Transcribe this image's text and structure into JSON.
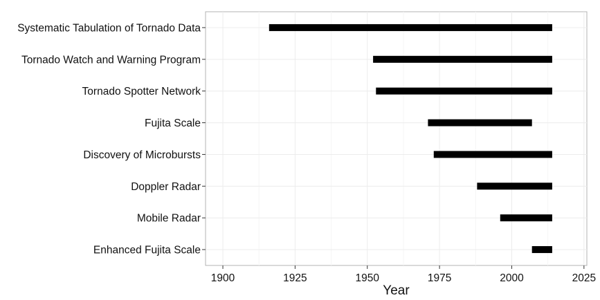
{
  "chart_data": {
    "type": "timeline",
    "title": "",
    "xlabel": "Year",
    "ylabel": "",
    "xlim": [
      1894,
      2026
    ],
    "xticks": [
      1900,
      1925,
      1950,
      1975,
      2000,
      2025
    ],
    "grid": true,
    "bar_color": "#000000",
    "categories": [
      "Systematic Tabulation of Tornado Data",
      "Tornado Watch and Warning Program",
      "Tornado Spotter Network",
      "Fujita Scale",
      "Discovery of Microbursts",
      "Doppler Radar",
      "Mobile Radar",
      "Enhanced Fujita Scale"
    ],
    "ranges": [
      [
        1916,
        2014
      ],
      [
        1952,
        2014
      ],
      [
        1953,
        2014
      ],
      [
        1971,
        2007
      ],
      [
        1973,
        2014
      ],
      [
        1988,
        2014
      ],
      [
        1996,
        2014
      ],
      [
        2007,
        2014
      ]
    ]
  }
}
